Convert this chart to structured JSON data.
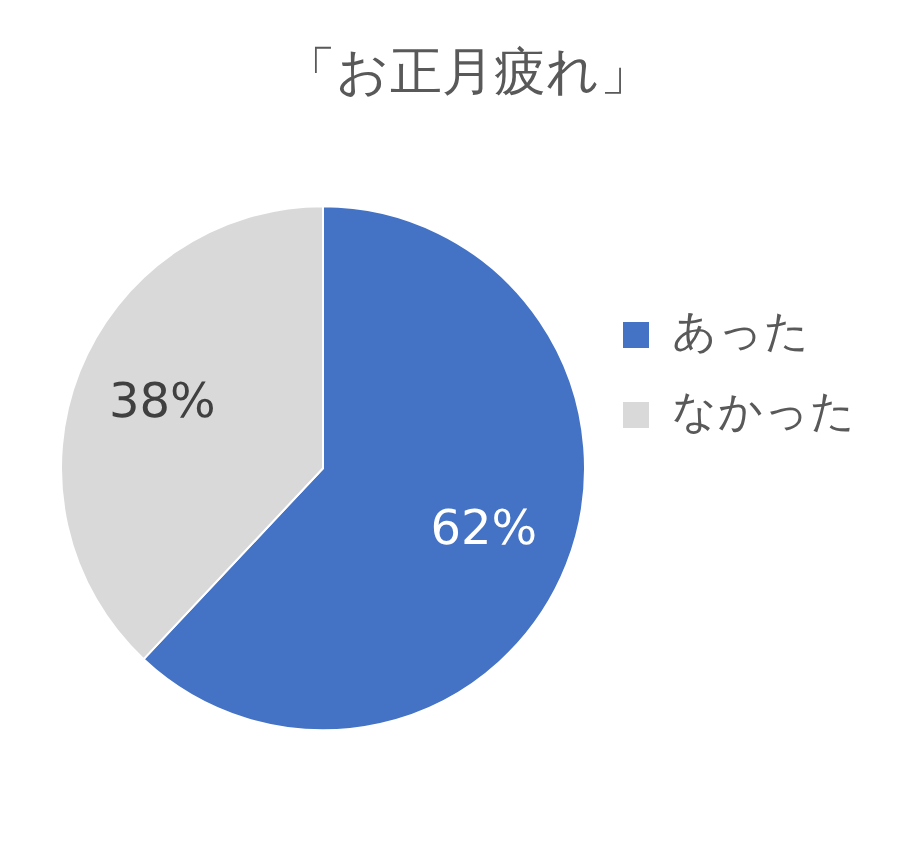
{
  "chart_data": {
    "type": "pie",
    "title": "「お正月疲れ」",
    "categories": [
      "あった",
      "なかった"
    ],
    "values": [
      62,
      38
    ],
    "colors": [
      "#4472c4",
      "#d9d9d9"
    ],
    "value_labels": [
      "62%",
      "38%"
    ],
    "legend": "right"
  }
}
